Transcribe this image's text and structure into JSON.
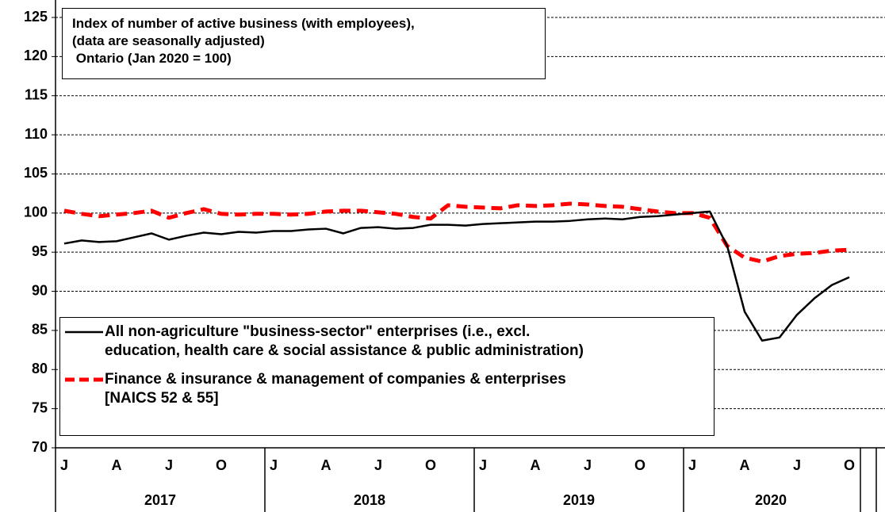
{
  "chart_data": {
    "type": "line",
    "title": "Index of number of active business (with employees),\n(data are seasonally adjusted)\n Ontario (Jan 2020 = 100)",
    "categories": [
      "J",
      null,
      null,
      "A",
      null,
      null,
      "J",
      null,
      null,
      "O",
      null,
      null,
      "J",
      null,
      null,
      "A",
      null,
      null,
      "J",
      null,
      null,
      "O",
      null,
      null,
      "J",
      null,
      null,
      "A",
      null,
      null,
      "J",
      null,
      null,
      "O",
      null,
      null,
      "J",
      null,
      null,
      "A",
      null,
      null,
      "J",
      null,
      null,
      "O"
    ],
    "years": [
      "2017",
      "2018",
      "2019",
      "2020"
    ],
    "series": [
      {
        "name": "All non-agriculture \"business-sector\" enterprises (i.e., excl.\neducation, health care & social assistance & public administration)",
        "color": "#000000",
        "style": "solid",
        "values": [
          96.1,
          96.5,
          96.3,
          96.4,
          96.9,
          97.4,
          96.6,
          97.1,
          97.5,
          97.3,
          97.6,
          97.5,
          97.7,
          97.7,
          97.9,
          98.0,
          97.4,
          98.1,
          98.2,
          98.0,
          98.1,
          98.5,
          98.5,
          98.4,
          98.6,
          98.7,
          98.8,
          98.9,
          98.9,
          99.0,
          99.2,
          99.3,
          99.2,
          99.5,
          99.6,
          99.8,
          100,
          100.2,
          95.8,
          87.4,
          83.7,
          84.1,
          87.0,
          89.1,
          90.8,
          91.8
        ]
      },
      {
        "name": "Finance & insurance & management of companies & enterprises\n[NAICS 52 & 55]",
        "color": "#ff0000",
        "style": "dashed",
        "values": [
          100.3,
          99.9,
          99.6,
          99.8,
          100.0,
          100.3,
          99.4,
          100.0,
          100.5,
          99.9,
          99.8,
          99.9,
          99.9,
          99.8,
          99.9,
          100.2,
          100.3,
          100.3,
          100.1,
          99.9,
          99.5,
          99.3,
          101.0,
          100.8,
          100.7,
          100.6,
          101.0,
          100.9,
          101.0,
          101.2,
          101.1,
          100.9,
          100.8,
          100.5,
          100.2,
          100.0,
          100,
          99.4,
          95.8,
          94.3,
          93.8,
          94.5,
          94.8,
          94.9,
          95.2,
          95.3
        ]
      }
    ],
    "ylim": [
      70,
      125
    ],
    "yticks": [
      70,
      75,
      80,
      85,
      90,
      95,
      100,
      105,
      110,
      115,
      120,
      125
    ],
    "grid": true
  }
}
